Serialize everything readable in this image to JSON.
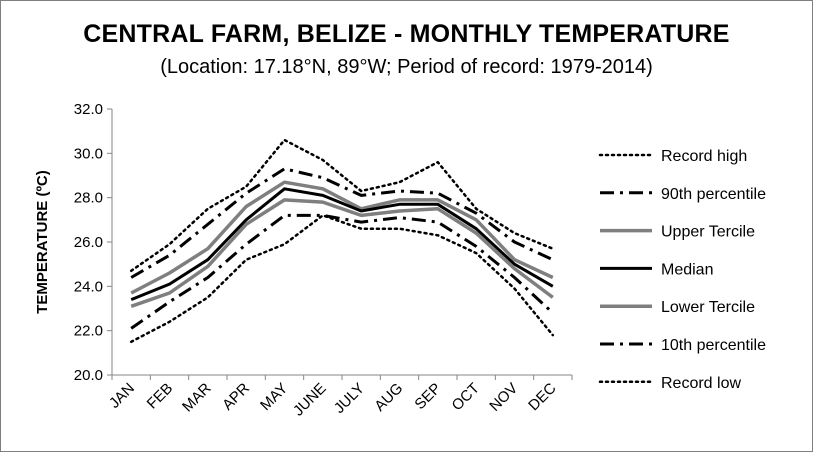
{
  "chart_data": {
    "type": "line",
    "title": "CENTRAL FARM, BELIZE - MONTHLY TEMPERATURE",
    "subtitle": "(Location: 17.18°N, 89°W; Period of record: 1979-2014)",
    "xlabel": "",
    "ylabel": "TEMPERATURE (ºC)",
    "ylim": [
      20,
      32
    ],
    "yticks": [
      "20.0",
      "22.0",
      "24.0",
      "26.0",
      "28.0",
      "30.0",
      "32.0"
    ],
    "categories": [
      "JAN",
      "FEB",
      "MAR",
      "APR",
      "MAY",
      "JUNE",
      "JULY",
      "AUG",
      "SEP",
      "OCT",
      "NOV",
      "DEC"
    ],
    "grid": false,
    "legend_position": "right",
    "series": [
      {
        "name": "Record high",
        "style": "dotted",
        "color": "#000000",
        "values": [
          24.7,
          25.9,
          27.5,
          28.5,
          30.6,
          29.7,
          28.3,
          28.7,
          29.6,
          27.5,
          26.4,
          25.7
        ]
      },
      {
        "name": "90th percentile",
        "style": "dashdot",
        "color": "#000000",
        "values": [
          24.4,
          25.4,
          26.8,
          28.2,
          29.3,
          28.9,
          28.1,
          28.3,
          28.2,
          27.3,
          26.0,
          25.2
        ]
      },
      {
        "name": "Upper Tercile",
        "style": "solid",
        "color": "#7f7f7f",
        "values": [
          23.7,
          24.6,
          25.7,
          27.6,
          28.7,
          28.4,
          27.5,
          27.9,
          27.9,
          27.0,
          25.2,
          24.4
        ]
      },
      {
        "name": "Median",
        "style": "solid",
        "color": "#000000",
        "values": [
          23.4,
          24.1,
          25.2,
          27.0,
          28.4,
          28.1,
          27.4,
          27.7,
          27.7,
          26.6,
          25.0,
          24.0
        ]
      },
      {
        "name": "Lower Tercile",
        "style": "solid",
        "color": "#7f7f7f",
        "values": [
          23.1,
          23.7,
          24.9,
          26.8,
          27.9,
          27.8,
          27.2,
          27.4,
          27.5,
          26.4,
          24.8,
          23.5
        ]
      },
      {
        "name": "10th percentile",
        "style": "dashdot",
        "color": "#000000",
        "values": [
          22.1,
          23.3,
          24.4,
          25.9,
          27.2,
          27.2,
          26.9,
          27.1,
          26.9,
          25.8,
          24.4,
          22.8
        ]
      },
      {
        "name": "Record low",
        "style": "dotted",
        "color": "#000000",
        "values": [
          21.5,
          22.4,
          23.5,
          25.2,
          25.9,
          27.2,
          26.6,
          26.6,
          26.3,
          25.5,
          23.9,
          21.8
        ]
      }
    ]
  }
}
